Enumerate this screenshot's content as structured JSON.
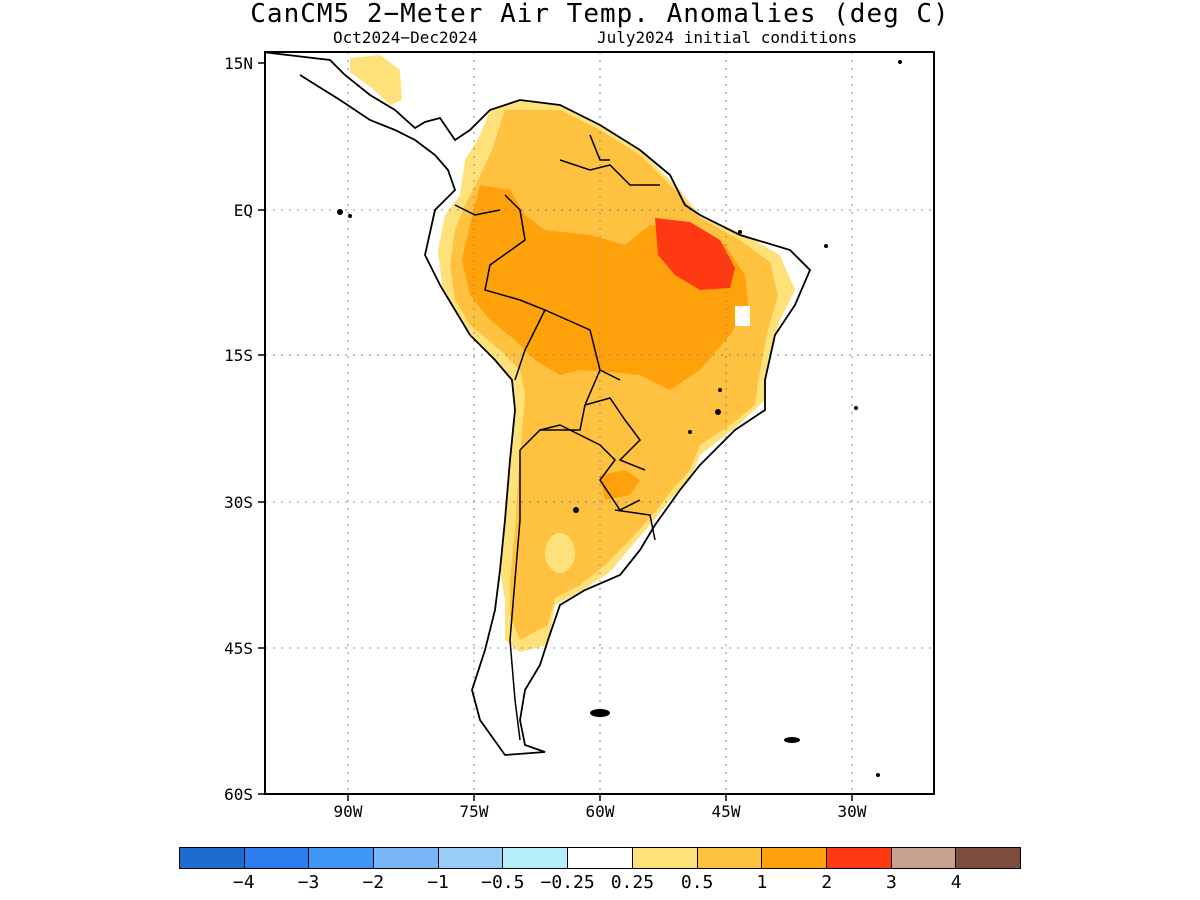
{
  "title": "CanCM5 2−Meter Air Temp. Anomalies (deg C)",
  "subtitle_period": "Oct2024−Dec2024",
  "subtitle_init": "July2024 initial conditions",
  "map": {
    "region": "South America",
    "lat_ticks": [
      "15N",
      "EQ",
      "15S",
      "30S",
      "45S",
      "60S"
    ],
    "lon_ticks": [
      "90W",
      "75W",
      "60W",
      "45W",
      "30W"
    ],
    "grid": "dotted",
    "max_anomaly_region": "northeastern Brazil (2–3 deg C)"
  },
  "colorbar": {
    "colors": [
      "#1e6ccf",
      "#2b7df0",
      "#3e97f5",
      "#78b6f8",
      "#97cdf8",
      "#b3f0fa",
      "#ffffff",
      "#ffe17a",
      "#ffc140",
      "#ffa10a",
      "#ff3a12",
      "#c8a090",
      "#7d4e40"
    ],
    "labels": [
      "−4",
      "−3",
      "−2",
      "−1",
      "−0.5",
      "−0.25",
      "0.25",
      "0.5",
      "1",
      "2",
      "3",
      "4"
    ]
  }
}
